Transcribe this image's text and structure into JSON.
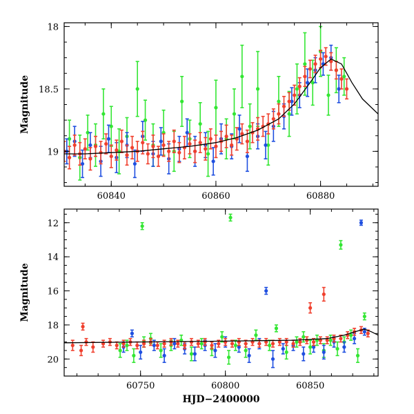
{
  "chart_data": [
    {
      "type": "scatter",
      "panel": "top",
      "xlabel": "",
      "ylabel": "Magnitude",
      "xlim": [
        60831,
        60891
      ],
      "ylim": [
        19.28,
        17.97
      ],
      "y_inverted": true,
      "grid": false,
      "xticks": [
        60840,
        60860,
        60880
      ],
      "yticks": [
        18,
        18.5,
        19
      ],
      "colors": {
        "green": "#33e633",
        "blue": "#1f4fe0",
        "red": "#f0402e",
        "model": "#000000"
      },
      "model_curve": {
        "x": [
          60831,
          60835,
          60840,
          60845,
          60850,
          60855,
          60860,
          60864,
          60868,
          60872,
          60875,
          60878,
          60880,
          60882,
          60884,
          60886,
          60888,
          60891
        ],
        "y": [
          19.02,
          19.02,
          19.01,
          19.0,
          18.98,
          18.96,
          18.93,
          18.89,
          18.83,
          18.74,
          18.62,
          18.45,
          18.33,
          18.26,
          18.3,
          18.45,
          18.58,
          18.7
        ]
      },
      "series": [
        {
          "color": "green",
          "x": [
            60832,
            60834,
            60835.5,
            60837,
            60838.5,
            60840,
            60841.5,
            60843,
            60845,
            60846.5,
            60848,
            60850,
            60852,
            60853.5,
            60855,
            60857,
            60858.5,
            60860,
            60862,
            60863.5,
            60865,
            60866.5,
            60868,
            60870,
            60872,
            60874,
            60875.5,
            60877,
            60878.5,
            60880,
            60881.5,
            60883,
            60884.5
          ],
          "y": [
            18.9,
            19.05,
            18.85,
            18.95,
            18.7,
            18.8,
            19.0,
            18.88,
            18.5,
            18.75,
            18.95,
            18.85,
            19.0,
            18.6,
            18.9,
            18.78,
            19.02,
            18.65,
            18.9,
            18.7,
            18.4,
            18.8,
            18.5,
            18.95,
            18.6,
            18.7,
            18.5,
            18.3,
            18.45,
            18.2,
            18.55,
            18.35,
            18.4
          ],
          "err": [
            0.15,
            0.18,
            0.14,
            0.17,
            0.2,
            0.16,
            0.18,
            0.15,
            0.22,
            0.16,
            0.17,
            0.18,
            0.16,
            0.2,
            0.15,
            0.17,
            0.18,
            0.22,
            0.16,
            0.2,
            0.25,
            0.18,
            0.3,
            0.16,
            0.2,
            0.18,
            0.2,
            0.25,
            0.18,
            0.2,
            0.16,
            0.18,
            0.15
          ]
        },
        {
          "color": "blue",
          "x": [
            60831.5,
            60833,
            60834.5,
            60836,
            60838,
            60839.5,
            60841,
            60843,
            60844.5,
            60846,
            60848,
            60849.5,
            60851,
            60853,
            60854.5,
            60856,
            60858,
            60859.5,
            60861,
            60863,
            60864.5,
            60866,
            60868,
            60869.5,
            60871,
            60873,
            60874.5,
            60876,
            60877.5,
            60879,
            60880.5,
            60882,
            60883.5
          ],
          "y": [
            19.0,
            18.92,
            19.1,
            18.95,
            19.08,
            18.9,
            19.05,
            18.95,
            19.1,
            18.88,
            19.02,
            18.92,
            19.06,
            18.98,
            18.85,
            19.0,
            18.95,
            19.08,
            18.9,
            18.96,
            18.82,
            19.04,
            18.88,
            18.95,
            18.8,
            18.72,
            18.6,
            18.55,
            18.45,
            18.35,
            18.3,
            18.25,
            18.5
          ],
          "err": [
            0.1,
            0.12,
            0.11,
            0.1,
            0.12,
            0.11,
            0.12,
            0.1,
            0.11,
            0.12,
            0.1,
            0.11,
            0.12,
            0.1,
            0.11,
            0.12,
            0.1,
            0.11,
            0.12,
            0.1,
            0.11,
            0.12,
            0.1,
            0.11,
            0.12,
            0.1,
            0.11,
            0.1,
            0.11,
            0.1,
            0.09,
            0.1,
            0.11
          ]
        },
        {
          "color": "red",
          "x": [
            60831,
            60832,
            60833,
            60834,
            60835,
            60836,
            60837,
            60838,
            60839,
            60840,
            60841,
            60842,
            60843,
            60844,
            60845,
            60846,
            60847,
            60848,
            60849,
            60850,
            60851,
            60852,
            60853,
            60854,
            60855,
            60856,
            60857,
            60858,
            60859,
            60860,
            60861,
            60862,
            60863,
            60864,
            60865,
            60866,
            60867,
            60868,
            60869,
            60870,
            60871,
            60872,
            60873,
            60874,
            60875,
            60876,
            60877,
            60878,
            60879,
            60880,
            60881,
            60882,
            60883,
            60884,
            60885
          ],
          "y": [
            19.0,
            19.05,
            18.95,
            19.02,
            18.98,
            19.06,
            18.96,
            19.01,
            18.94,
            19.04,
            18.99,
            18.92,
            19.03,
            18.97,
            19.0,
            18.93,
            19.02,
            18.96,
            19.04,
            18.95,
            19.0,
            18.92,
            19.01,
            18.97,
            18.94,
            19.0,
            18.93,
            18.98,
            18.9,
            18.96,
            18.92,
            18.88,
            18.95,
            18.9,
            18.86,
            18.92,
            18.85,
            18.82,
            18.8,
            18.78,
            18.74,
            18.7,
            18.64,
            18.6,
            18.55,
            18.48,
            18.4,
            18.34,
            18.3,
            18.26,
            18.24,
            18.28,
            18.35,
            18.42,
            18.5
          ],
          "err": [
            0.08,
            0.09,
            0.08,
            0.09,
            0.08,
            0.09,
            0.08,
            0.09,
            0.08,
            0.09,
            0.08,
            0.09,
            0.08,
            0.09,
            0.08,
            0.09,
            0.08,
            0.09,
            0.08,
            0.09,
            0.08,
            0.09,
            0.08,
            0.09,
            0.08,
            0.09,
            0.08,
            0.09,
            0.08,
            0.09,
            0.08,
            0.09,
            0.08,
            0.09,
            0.08,
            0.09,
            0.08,
            0.09,
            0.08,
            0.08,
            0.08,
            0.08,
            0.08,
            0.07,
            0.08,
            0.07,
            0.08,
            0.07,
            0.07,
            0.07,
            0.07,
            0.07,
            0.07,
            0.08,
            0.08
          ]
        }
      ]
    },
    {
      "type": "scatter",
      "panel": "bottom",
      "xlabel": "HJD−2400000",
      "ylabel": "Magnitude",
      "xlim": [
        60705,
        60890
      ],
      "ylim": [
        21.0,
        11.2
      ],
      "y_inverted": true,
      "grid": false,
      "xticks": [
        60750,
        60800,
        60850
      ],
      "yticks": [
        12,
        14,
        16,
        18,
        20
      ],
      "colors": {
        "green": "#33e633",
        "blue": "#1f4fe0",
        "red": "#f0402e",
        "model": "#000000"
      },
      "model_curve": {
        "x": [
          60705,
          60750,
          60800,
          60840,
          60860,
          60870,
          60878,
          60882,
          60886,
          60890
        ],
        "y": [
          19.05,
          19.0,
          18.95,
          18.9,
          18.8,
          18.6,
          18.35,
          18.25,
          18.4,
          18.6
        ]
      },
      "series": [
        {
          "color": "green",
          "x": [
            60738,
            60742,
            60746,
            60752,
            60756,
            60762,
            60768,
            60774,
            60780,
            60786,
            60792,
            60798,
            60802,
            60806,
            60812,
            60818,
            60826,
            60830,
            60836,
            60842,
            60846,
            60850,
            60854,
            60858,
            60862,
            60866,
            60870,
            60874,
            60878,
            60882,
            60751,
            60803,
            60868
          ],
          "y": [
            19.5,
            19.2,
            19.8,
            19.0,
            18.8,
            19.5,
            19.2,
            18.9,
            19.7,
            19.1,
            19.4,
            18.7,
            19.9,
            19.2,
            19.5,
            18.6,
            19.2,
            18.2,
            19.6,
            19.0,
            18.7,
            19.3,
            18.9,
            19.5,
            18.9,
            19.4,
            19.0,
            18.6,
            19.8,
            17.5,
            12.2,
            11.7,
            13.3
          ],
          "err": [
            0.4,
            0.3,
            0.4,
            0.3,
            0.3,
            0.4,
            0.3,
            0.3,
            0.4,
            0.3,
            0.4,
            0.3,
            0.4,
            0.3,
            0.4,
            0.3,
            0.3,
            0.2,
            0.4,
            0.3,
            0.3,
            0.4,
            0.3,
            0.4,
            0.3,
            0.4,
            0.3,
            0.3,
            0.4,
            0.2,
            0.2,
            0.2,
            0.25
          ]
        },
        {
          "color": "blue",
          "x": [
            60740,
            60745,
            60750,
            60758,
            60764,
            60770,
            60776,
            60782,
            60788,
            60794,
            60800,
            60808,
            60814,
            60820,
            60828,
            60834,
            60840,
            60846,
            60852,
            60858,
            60864,
            60870,
            60876,
            60882,
            60824,
            60880
          ],
          "y": [
            19.3,
            18.5,
            19.6,
            19.2,
            19.8,
            19.1,
            19.4,
            19.7,
            19.2,
            19.5,
            19.0,
            19.3,
            19.8,
            19.1,
            20.0,
            19.4,
            19.2,
            19.7,
            19.3,
            19.6,
            19.0,
            19.3,
            18.8,
            18.4,
            16.0,
            12.0
          ],
          "err": [
            0.3,
            0.2,
            0.4,
            0.3,
            0.4,
            0.3,
            0.3,
            0.4,
            0.3,
            0.4,
            0.3,
            0.3,
            0.4,
            0.3,
            0.5,
            0.3,
            0.3,
            0.4,
            0.3,
            0.4,
            0.3,
            0.3,
            0.3,
            0.2,
            0.2,
            0.15
          ]
        },
        {
          "color": "red",
          "x": [
            60710,
            60715,
            60718,
            60722,
            60728,
            60732,
            60736,
            60740,
            60744,
            60748,
            60752,
            60756,
            60760,
            60764,
            60768,
            60772,
            60776,
            60780,
            60784,
            60788,
            60792,
            60796,
            60800,
            60804,
            60808,
            60812,
            60816,
            60820,
            60824,
            60828,
            60832,
            60836,
            60840,
            60844,
            60848,
            60852,
            60856,
            60860,
            60864,
            60868,
            60872,
            60876,
            60880,
            60884,
            60716,
            60858,
            60850
          ],
          "y": [
            19.2,
            19.5,
            19.0,
            19.3,
            19.1,
            19.0,
            19.2,
            19.1,
            19.0,
            19.2,
            19.1,
            19.0,
            19.2,
            19.1,
            19.0,
            19.1,
            19.2,
            19.0,
            19.1,
            19.0,
            19.2,
            19.1,
            19.0,
            19.1,
            19.0,
            19.1,
            19.0,
            19.1,
            19.0,
            19.1,
            19.0,
            19.0,
            19.1,
            19.0,
            18.9,
            19.0,
            18.9,
            18.9,
            18.8,
            18.8,
            18.6,
            18.4,
            18.3,
            18.5,
            18.1,
            16.2,
            17.0
          ],
          "err": [
            0.3,
            0.3,
            0.2,
            0.3,
            0.2,
            0.2,
            0.2,
            0.2,
            0.2,
            0.2,
            0.2,
            0.2,
            0.2,
            0.2,
            0.2,
            0.2,
            0.2,
            0.2,
            0.2,
            0.2,
            0.2,
            0.2,
            0.2,
            0.2,
            0.2,
            0.2,
            0.2,
            0.2,
            0.2,
            0.2,
            0.2,
            0.2,
            0.2,
            0.2,
            0.2,
            0.2,
            0.2,
            0.2,
            0.2,
            0.2,
            0.2,
            0.2,
            0.2,
            0.2,
            0.2,
            0.4,
            0.3
          ]
        }
      ]
    }
  ]
}
